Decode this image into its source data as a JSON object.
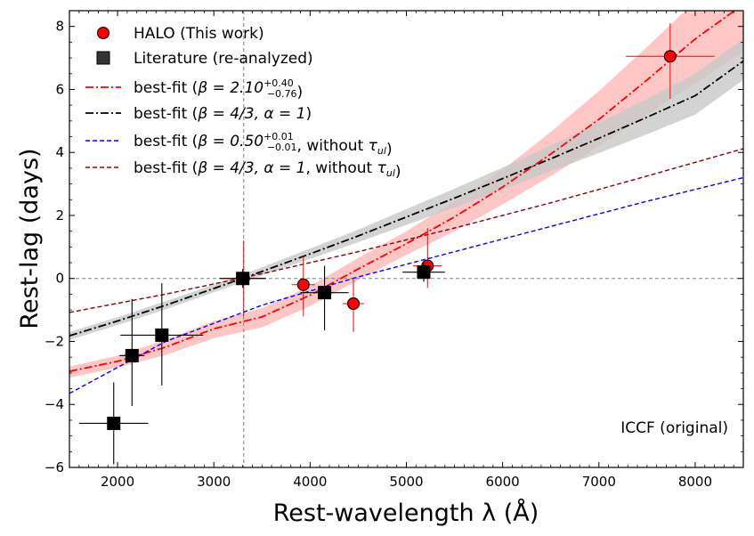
{
  "chart_data": {
    "type": "scatter",
    "xlabel": "Rest-wavelength λ (Å)",
    "ylabel": "Rest-lag (days)",
    "xlim": [
      1500,
      8500
    ],
    "ylim": [
      -6,
      8.5
    ],
    "xticks": [
      2000,
      3000,
      4000,
      5000,
      6000,
      7000,
      8000
    ],
    "yticks": [
      -6,
      -4,
      -2,
      0,
      2,
      4,
      6,
      8
    ],
    "reference_lines": {
      "y": 0,
      "x": 3310
    },
    "annotation": "ICCF (original)",
    "legend_position": "top-left",
    "series": [
      {
        "name": "HALO (This work)",
        "kind": "points",
        "marker": "circle",
        "color": "#ff0000",
        "errcolor": "#ff0000",
        "points": [
          {
            "x": 3310,
            "y": 0.0,
            "xerr": 220,
            "yerr_lo": 1.2,
            "yerr_hi": 1.2
          },
          {
            "x": 3930,
            "y": -0.2,
            "xerr": 120,
            "yerr_lo": 1.0,
            "yerr_hi": 0.9
          },
          {
            "x": 4450,
            "y": -0.8,
            "xerr": 110,
            "yerr_lo": 0.9,
            "yerr_hi": 0.8
          },
          {
            "x": 5220,
            "y": 0.4,
            "xerr": 150,
            "yerr_lo": 0.7,
            "yerr_hi": 1.2
          },
          {
            "x": 7740,
            "y": 7.05,
            "xerr": 460,
            "yerr_lo": 1.35,
            "yerr_hi": 1.05
          }
        ]
      },
      {
        "name": "Literature (re-analyzed)",
        "kind": "points",
        "marker": "square",
        "color": "#000000",
        "errcolor": "#000000",
        "points": [
          {
            "x": 1960,
            "y": -4.6,
            "xerr": 360,
            "yerr_lo": 1.3,
            "yerr_hi": 1.3
          },
          {
            "x": 2150,
            "y": -2.45,
            "xerr": 130,
            "yerr_lo": 1.6,
            "yerr_hi": 1.8
          },
          {
            "x": 2460,
            "y": -1.8,
            "xerr": 430,
            "yerr_lo": 1.6,
            "yerr_hi": 1.65
          },
          {
            "x": 3300,
            "y": 0.0,
            "xerr": 240,
            "yerr_lo": 0.3,
            "yerr_hi": 0.3
          },
          {
            "x": 4150,
            "y": -0.45,
            "xerr": 250,
            "yerr_lo": 1.2,
            "yerr_hi": 0.85
          },
          {
            "x": 5180,
            "y": 0.2,
            "xerr": 220,
            "yerr_lo": 0.3,
            "yerr_hi": 0.3
          }
        ]
      },
      {
        "name": "best-fit (β = 2.10, +0.40, −0.76)",
        "kind": "line",
        "dash": "dashdot",
        "color": "#ff0000",
        "band_color": "#ffb3b3",
        "x": [
          1500,
          2000,
          2500,
          3000,
          3500,
          4000,
          4500,
          5000,
          5500,
          6000,
          6500,
          7000,
          7500,
          8000,
          8500
        ],
        "y": [
          -2.95,
          -2.63,
          -2.18,
          -1.6,
          -1.22,
          -0.53,
          0.3,
          1.1,
          1.95,
          2.9,
          3.95,
          5.05,
          6.3,
          7.6,
          8.7
        ],
        "band_lo": [
          -3.15,
          -2.83,
          -2.43,
          -1.9,
          -1.55,
          -0.88,
          -0.05,
          0.75,
          1.5,
          2.35,
          3.25,
          4.2,
          5.2,
          6.2,
          7.2
        ],
        "band_hi": [
          -2.8,
          -2.45,
          -1.95,
          -1.35,
          -0.95,
          -0.25,
          0.65,
          1.5,
          2.45,
          3.45,
          4.65,
          5.95,
          7.35,
          8.8,
          10.2
        ]
      },
      {
        "name": "best-fit (β = 4/3, α = 1)",
        "kind": "line",
        "dash": "dashdot",
        "color": "#000000",
        "band_color": "#c8c8c8",
        "x": [
          1500,
          2000,
          2500,
          3000,
          3500,
          4000,
          4500,
          5000,
          5500,
          6000,
          6500,
          7000,
          7500,
          8000,
          8500
        ],
        "y": [
          -1.82,
          -1.35,
          -0.85,
          -0.32,
          0.22,
          0.78,
          1.35,
          1.95,
          2.55,
          3.17,
          3.8,
          4.45,
          5.12,
          5.8,
          6.9
        ],
        "band_lo": [
          -1.95,
          -1.48,
          -0.98,
          -0.44,
          0.1,
          0.62,
          1.15,
          1.7,
          2.25,
          2.82,
          3.4,
          3.98,
          4.58,
          5.2,
          6.3
        ],
        "band_hi": [
          -1.7,
          -1.23,
          -0.72,
          -0.2,
          0.35,
          0.95,
          1.55,
          2.2,
          2.85,
          3.52,
          4.22,
          4.95,
          5.7,
          6.5,
          7.6
        ]
      },
      {
        "name": "best-fit (β = 0.50, +0.01, −0.01, without τul)",
        "kind": "line",
        "dash": "dashed",
        "color": "#0000ff",
        "x": [
          1500,
          2500,
          3500,
          4500,
          5500,
          6500,
          7500,
          8500
        ],
        "y": [
          -3.65,
          -2.0,
          -0.85,
          0.05,
          0.85,
          1.65,
          2.45,
          3.2
        ]
      },
      {
        "name": "best-fit (β = 4/3, α = 1, without τul)",
        "kind": "line",
        "dash": "dashed",
        "color": "#8b0000",
        "x": [
          1500,
          2500,
          3500,
          4500,
          5500,
          6500,
          7500,
          8500
        ],
        "y": [
          -1.08,
          -0.5,
          0.15,
          0.85,
          1.6,
          2.4,
          3.25,
          4.12
        ]
      }
    ]
  },
  "legend": [
    {
      "kind": "circle",
      "color": "#ff0000",
      "text": "HALO (This work)"
    },
    {
      "kind": "square",
      "color": "#333333",
      "text": "Literature (re-analyzed)"
    },
    {
      "kind": "dashdot",
      "color": "#ff0000",
      "prefix": "best-fit (",
      "beta": "β = 2.10",
      "sup": "+0.40",
      "sub": "−0.76",
      "suffix": ")"
    },
    {
      "kind": "dashdot",
      "color": "#000000",
      "prefix": "best-fit (",
      "beta": "β = 4/3, α = 1",
      "suffix": ")"
    },
    {
      "kind": "dashed",
      "color": "#0000ff",
      "prefix": "best-fit (",
      "beta": "β = 0.50",
      "sup": "+0.01",
      "sub": "−0.01",
      "mid": ", without ",
      "tau": "τ",
      "tausub": "ul",
      "suffix": ")"
    },
    {
      "kind": "dashed",
      "color": "#8b0000",
      "prefix": "best-fit (",
      "beta": "β = 4/3, α = 1",
      "mid": ", without ",
      "tau": "τ",
      "tausub": "ul",
      "suffix": ")"
    }
  ]
}
